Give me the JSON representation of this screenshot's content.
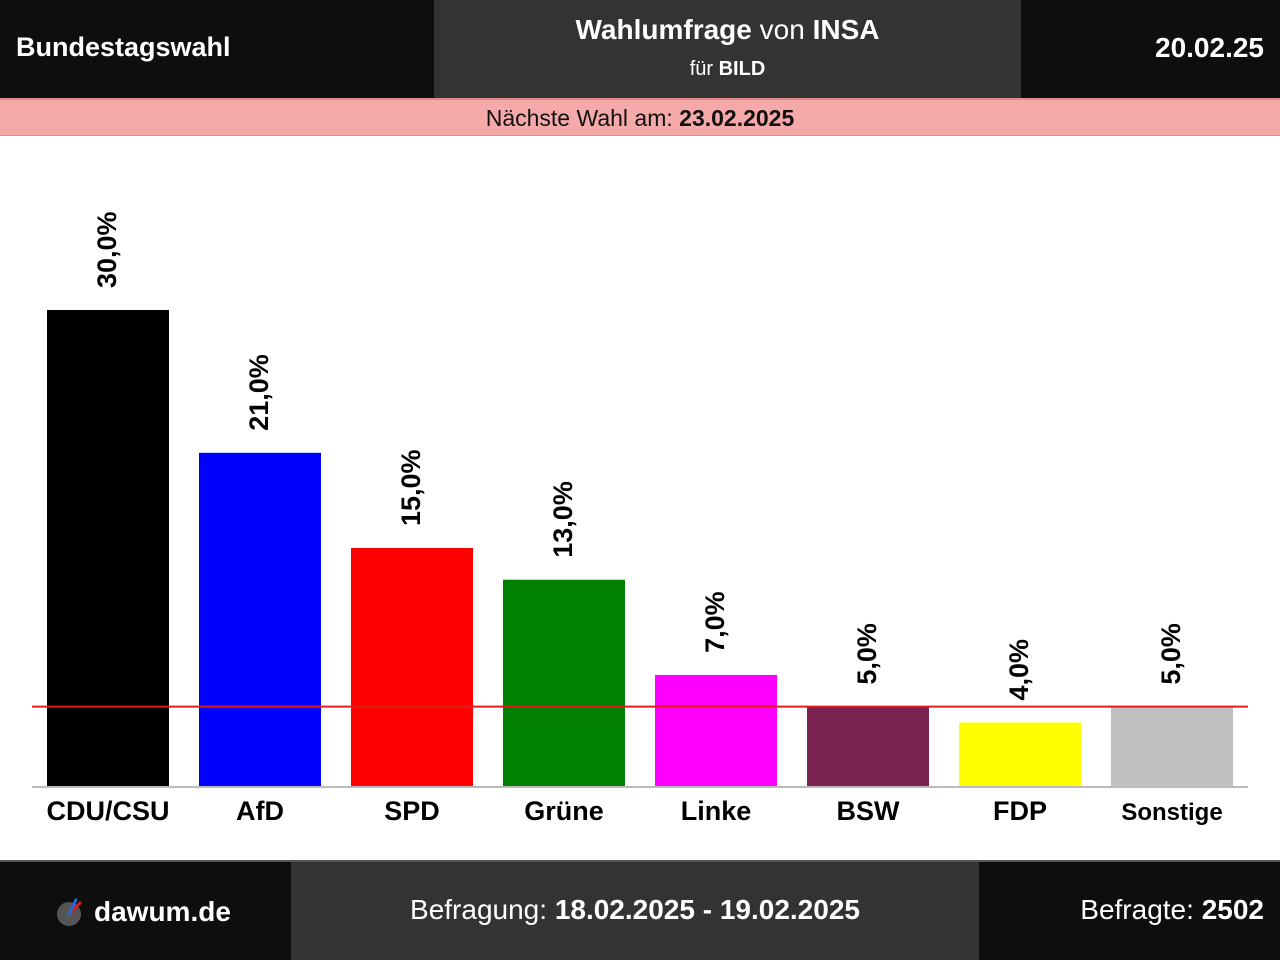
{
  "header": {
    "left_title": "Bundestagswahl",
    "title_bold": "Wahlumfrage",
    "title_mid": "von",
    "title_institute": "INSA",
    "client_prefix": "für",
    "client": "BILD",
    "date": "20.02.25"
  },
  "election_band": {
    "label": "Nächste Wahl am:",
    "date": "23.02.2025"
  },
  "footer": {
    "logo_text": "dawum.de",
    "survey_label": "Befragung:",
    "survey_period": "18.02.2025 - 19.02.2025",
    "respondents_label": "Befragte:",
    "respondents": "2502"
  },
  "chart_data": {
    "type": "bar",
    "categories": [
      "CDU/CSU",
      "AfD",
      "SPD",
      "Grüne",
      "Linke",
      "BSW",
      "FDP",
      "Sonstige"
    ],
    "values": [
      30.0,
      21.0,
      15.0,
      13.0,
      7.0,
      5.0,
      4.0,
      5.0
    ],
    "value_labels": [
      "30,0%",
      "21,0%",
      "15,0%",
      "13,0%",
      "7,0%",
      "5,0%",
      "4,0%",
      "5,0%"
    ],
    "colors": [
      "#000000",
      "#0000ff",
      "#ff0000",
      "#008000",
      "#ff00ff",
      "#7a2350",
      "#ffff00",
      "#c0c0c0"
    ],
    "threshold": 5.0,
    "threshold_color": "#e31a1c",
    "ylim": [
      0,
      30
    ]
  }
}
